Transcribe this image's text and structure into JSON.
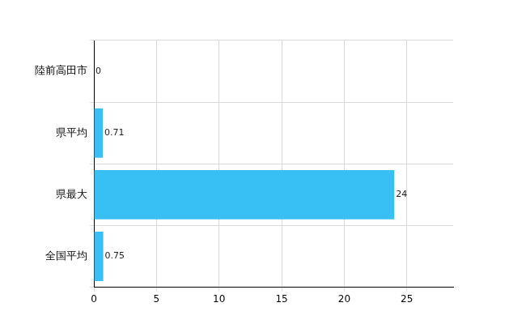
{
  "chart_data": {
    "type": "bar",
    "orientation": "horizontal",
    "categories": [
      "陸前高田市",
      "県平均",
      "県最大",
      "全国平均"
    ],
    "values": [
      0,
      0.71,
      24,
      0.75
    ],
    "color": "#38c0f5",
    "xlim": [
      0,
      28.7
    ],
    "xticks": [
      0,
      5,
      10,
      15,
      20,
      25
    ],
    "grid": true,
    "data_labels": true
  }
}
